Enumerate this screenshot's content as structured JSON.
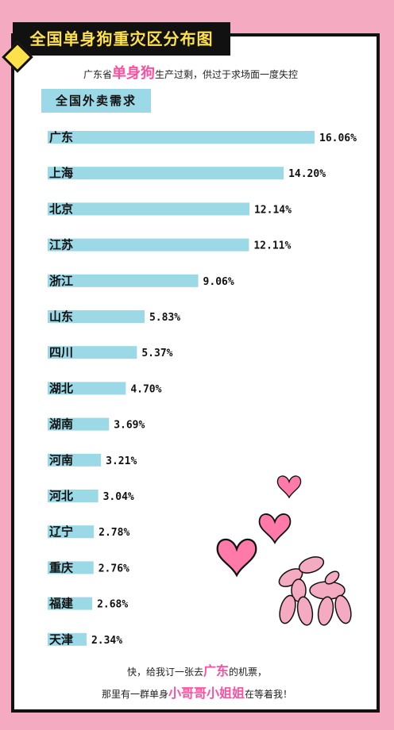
{
  "title": "全国单身狗重灾区分布图",
  "subtitle": {
    "pre": "广东省",
    "highlight": "单身狗",
    "post": "生产过剩，供过于求场面一度失控"
  },
  "section_label": "全国外卖需求",
  "footer": {
    "line1_pre": "快，给我订一张去",
    "line1_highlight": "广东",
    "line1_post": "的机票，",
    "line2_pre": "那里有一群单身",
    "line2_highlight": "小哥哥小姐姐",
    "line2_post": "在等着我！"
  },
  "colors": {
    "bar": "#9bd9e6",
    "label_bg": "#9bd9e6",
    "title_bg": "#111111",
    "title_text": "#fde14a",
    "highlight": "#ff4fa0",
    "background": "#f4aac0",
    "heart": "#ff7aa8"
  },
  "chart_data": {
    "type": "bar",
    "orientation": "horizontal",
    "title": "全国外卖需求",
    "categories": [
      "广东",
      "上海",
      "北京",
      "江苏",
      "浙江",
      "山东",
      "四川",
      "湖北",
      "湖南",
      "河南",
      "河北",
      "辽宁",
      "重庆",
      "福建",
      "天津"
    ],
    "values": [
      16.06,
      14.2,
      12.14,
      12.11,
      9.06,
      5.83,
      5.37,
      4.7,
      3.69,
      3.21,
      3.04,
      2.78,
      2.76,
      2.68,
      2.34
    ],
    "value_labels": [
      "16.06%",
      "14.20%",
      "12.14%",
      "12.11%",
      "9.06%",
      "5.83%",
      "5.37%",
      "4.70%",
      "3.69%",
      "3.21%",
      "3.04%",
      "2.78%",
      "2.76%",
      "2.68%",
      "2.34%"
    ],
    "unit": "%",
    "grid": false,
    "legend": "none"
  }
}
